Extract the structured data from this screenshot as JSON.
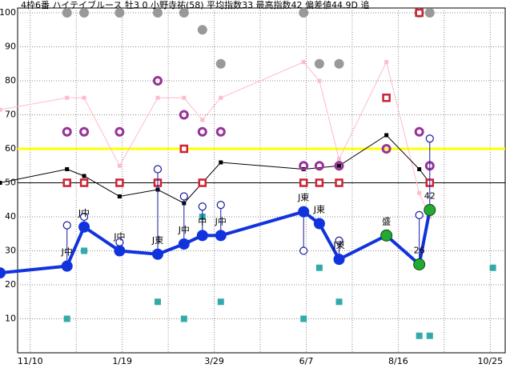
{
  "chart_data": {
    "type": "line",
    "title": "4枠6番 ハイテイブルース 牡3 0 小野寺祐(58) 平均指数33 最高指数42 偏差値44.9D 追",
    "xlim": [
      -23,
      362
    ],
    "ylim": [
      0,
      100
    ],
    "xticks": [
      {
        "value": 0,
        "label": "11/10"
      },
      {
        "value": 70,
        "label": "1/19"
      },
      {
        "value": 140,
        "label": "3/29"
      },
      {
        "value": 210,
        "label": "6/7"
      },
      {
        "value": 280,
        "label": "8/16"
      },
      {
        "value": 350,
        "label": "10/25"
      }
    ],
    "x_minor_ticks": [
      35,
      105,
      175,
      245,
      315
    ],
    "yticks": [
      10,
      20,
      30,
      40,
      50,
      60,
      70,
      80,
      90,
      100
    ],
    "grid": true,
    "reference_lines": [
      {
        "value": 60,
        "color": "#ffff00"
      },
      {
        "value": 50,
        "color": "#000000"
      }
    ],
    "series": [
      {
        "type": "scatter",
        "marker": "circle",
        "color": "#999999",
        "x": [
          28,
          41,
          68,
          97,
          117,
          131,
          145,
          208,
          220,
          235,
          296,
          304
        ],
        "values": [
          100,
          100,
          100,
          100,
          100,
          95,
          85,
          100,
          85,
          85,
          100,
          100
        ]
      },
      {
        "type": "scatter",
        "marker": "square",
        "color": "#33aaaa",
        "x": [
          28,
          41,
          68,
          97,
          117,
          131,
          145,
          208,
          220,
          235,
          296,
          304,
          352
        ],
        "values": [
          10,
          30,
          30,
          15,
          10,
          40,
          15,
          10,
          25,
          15,
          5,
          5,
          25
        ]
      },
      {
        "type": "line",
        "marker": "small-square",
        "color": "#ffbbcc",
        "x": [
          -23,
          28,
          41,
          68,
          97,
          117,
          131,
          145,
          208,
          220,
          235,
          271,
          296,
          304
        ],
        "values": [
          71.5,
          75,
          75,
          55,
          75,
          75,
          68.5,
          75,
          85.5,
          80,
          57,
          85.5,
          47,
          40
        ]
      },
      {
        "type": "line",
        "marker": "small-square",
        "color": "#000000",
        "x": [
          -23,
          28,
          41,
          68,
          97,
          117,
          131,
          145,
          208,
          235,
          271,
          296,
          304
        ],
        "values": [
          50,
          54,
          52,
          46,
          48,
          44,
          50,
          56,
          54,
          55,
          64,
          54,
          50
        ]
      },
      {
        "type": "scatter",
        "marker": "open-square",
        "color": "#cc2233",
        "x": [
          28,
          41,
          68,
          97,
          117,
          131,
          208,
          220,
          235,
          271,
          296,
          304
        ],
        "values": [
          50,
          50,
          50,
          50,
          60,
          50,
          50,
          50,
          50,
          75,
          100,
          50
        ]
      },
      {
        "type": "scatter",
        "marker": "ring",
        "color": "#993399",
        "x": [
          28,
          41,
          68,
          97,
          117,
          131,
          145,
          208,
          220,
          235,
          271,
          296,
          304
        ],
        "values": [
          65,
          65,
          65,
          80,
          70,
          65,
          65,
          55,
          55,
          55,
          60,
          65,
          55
        ]
      },
      {
        "type": "scatter",
        "marker": "open-circle",
        "color": "#1a1aa0",
        "connect_to": 7,
        "x": [
          28,
          41,
          68,
          97,
          117,
          131,
          145,
          208,
          235,
          296,
          304
        ],
        "values": [
          37.5,
          40,
          32.5,
          54,
          46,
          43,
          43.5,
          30,
          33,
          40.5,
          63
        ]
      },
      {
        "type": "line",
        "marker": "circle",
        "color": "#1133dd",
        "width": 4,
        "x": [
          -23,
          28,
          41,
          68,
          97,
          117,
          131,
          145,
          208,
          220,
          235,
          271,
          296,
          304
        ],
        "values": [
          23.5,
          25.5,
          37,
          30,
          29,
          32,
          34.5,
          34.5,
          41.5,
          38,
          27.5,
          34.5,
          26,
          42
        ],
        "point_colors": [
          "#1133dd",
          "#1133dd",
          "#1133dd",
          "#1133dd",
          "#1133dd",
          "#1133dd",
          "#1133dd",
          "#1133dd",
          "#1133dd",
          "#1133dd",
          "#1133dd",
          "#22aa33",
          "#22aa33",
          "#22aa33"
        ],
        "point_labels": [
          null,
          "J中",
          "J中",
          "J中",
          "J東",
          "J中",
          "中",
          "J中",
          "J東",
          "J東",
          "J東",
          "盛",
          "26",
          "42"
        ]
      }
    ]
  }
}
